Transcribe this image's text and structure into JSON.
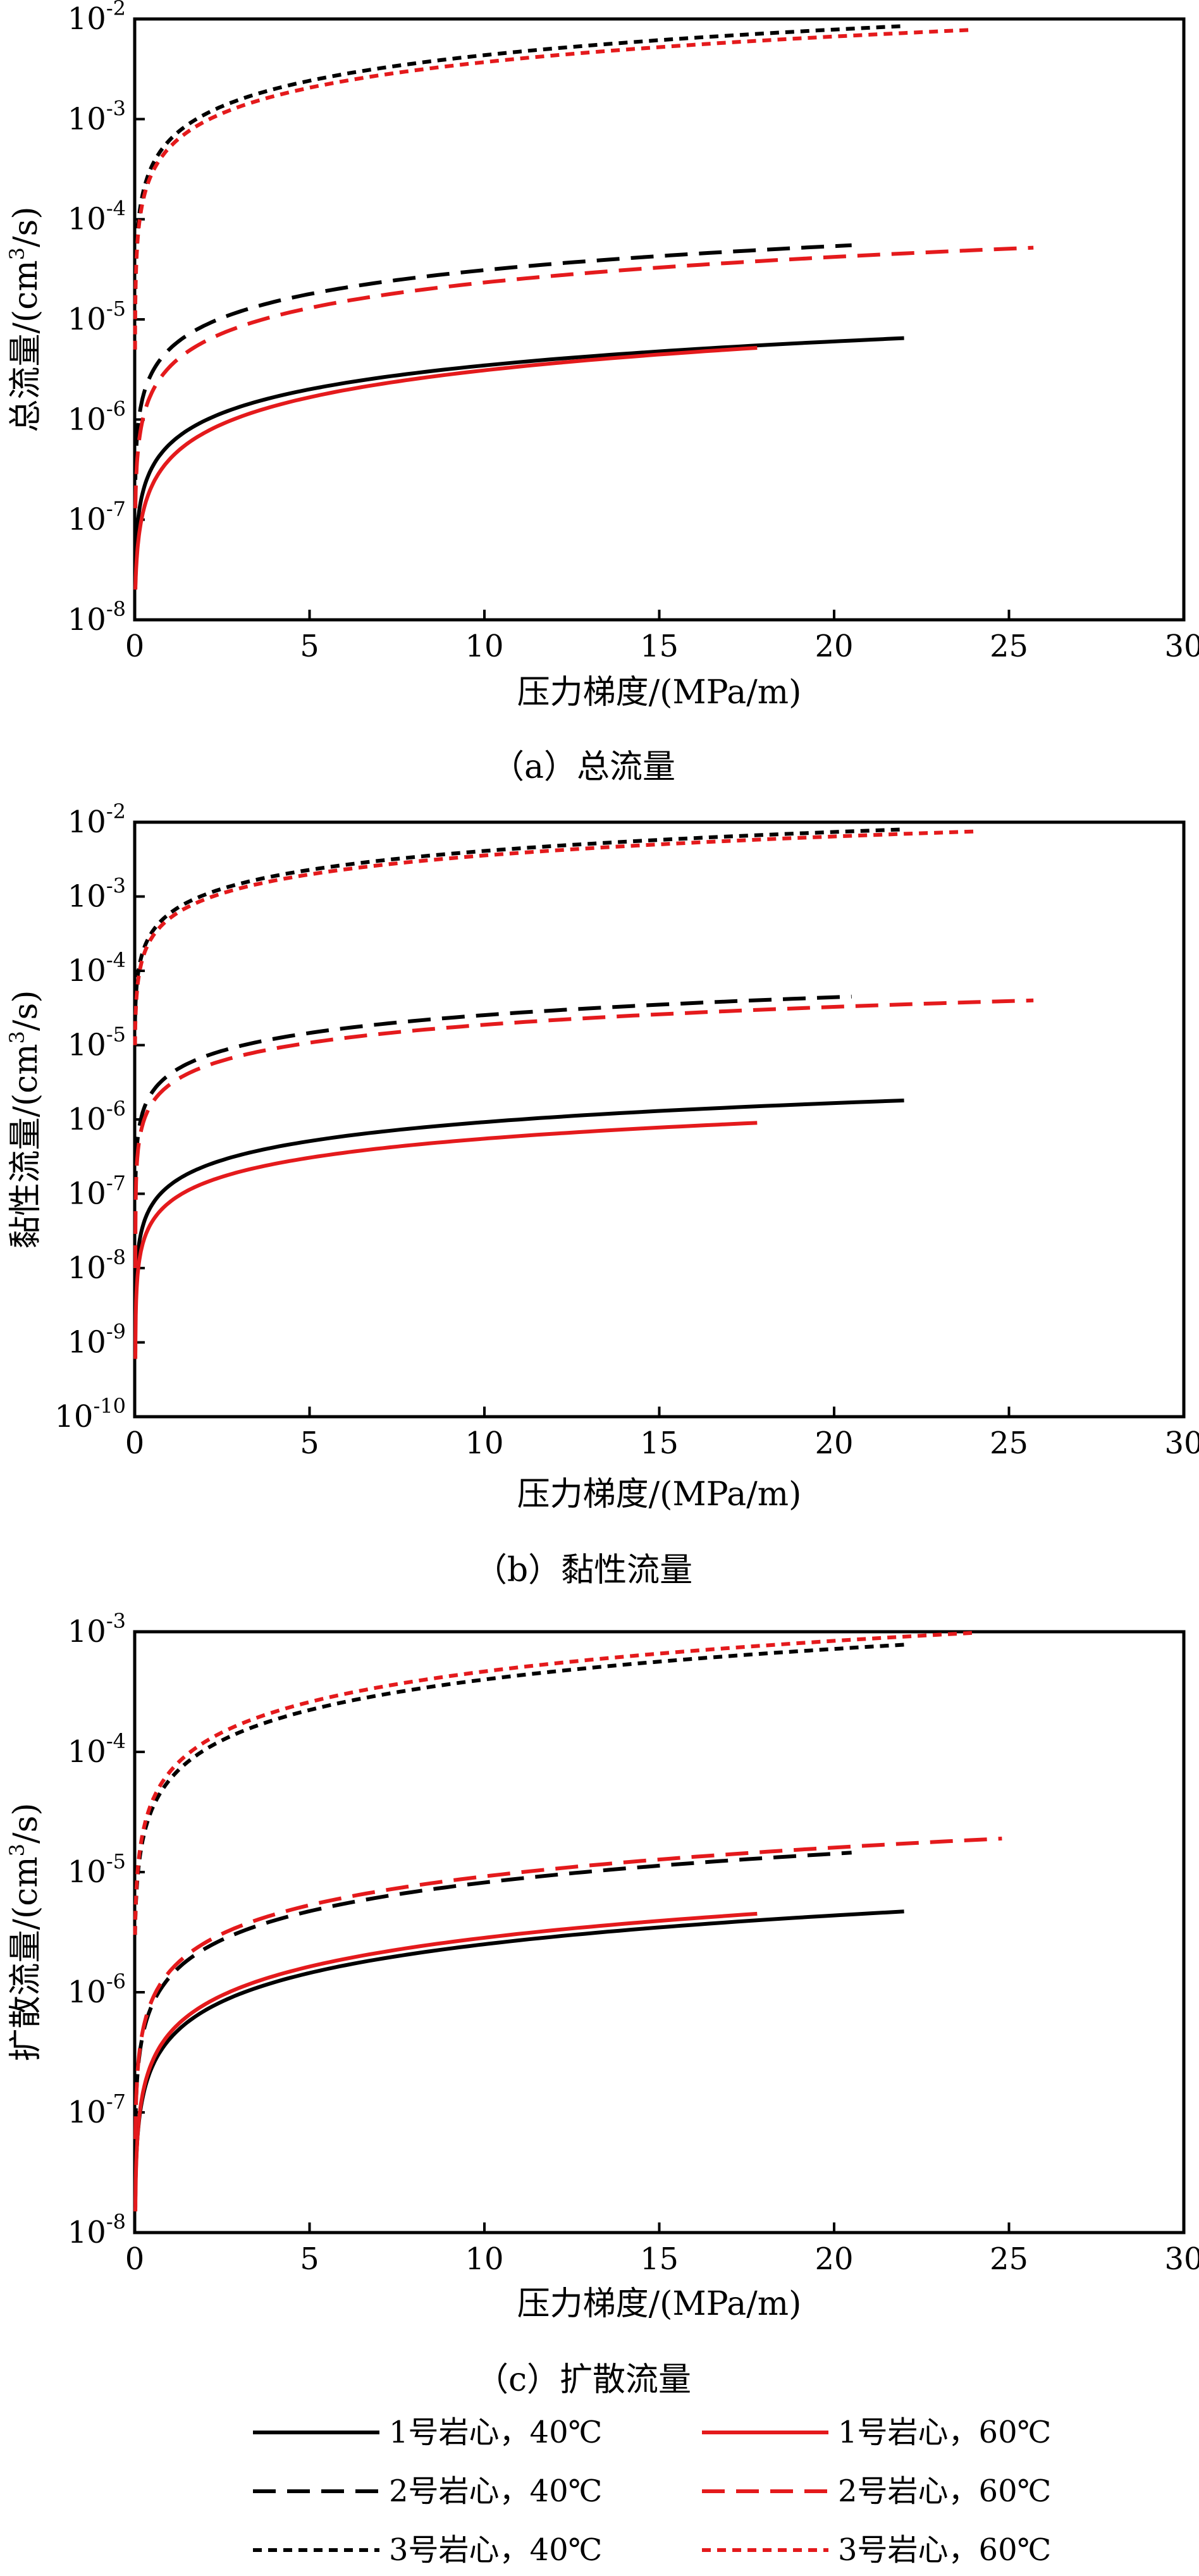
{
  "chart_data": [
    {
      "type": "line",
      "panel_id": "a",
      "caption": "（a）总流量",
      "xlabel": "压力梯度/(MPa/m)",
      "ylabel": "总流量/(cm³/s)",
      "ylabel_parts": {
        "pre": "总流量/(cm",
        "sup": "3",
        "post": "/s)"
      },
      "xlim": [
        0,
        30
      ],
      "ylim": [
        1e-08,
        0.01
      ],
      "yscale": "log",
      "xticks": [
        0,
        5,
        10,
        15,
        20,
        25,
        30
      ],
      "yticks": [
        {
          "base": "10",
          "exp": "-8",
          "value": 1e-08
        },
        {
          "base": "10",
          "exp": "-7",
          "value": 1e-07
        },
        {
          "base": "10",
          "exp": "-6",
          "value": 1e-06
        },
        {
          "base": "10",
          "exp": "-5",
          "value": 1e-05
        },
        {
          "base": "10",
          "exp": "-4",
          "value": 0.0001
        },
        {
          "base": "10",
          "exp": "-3",
          "value": 0.001
        },
        {
          "base": "10",
          "exp": "-2",
          "value": 0.01
        }
      ],
      "grid": false,
      "series": [
        {
          "name": "1号岩心，40℃",
          "color": "#000000",
          "dash": "solid",
          "x0": 0.02,
          "y0": 3e-08,
          "x1": 22.0,
          "y1": 6.5e-06,
          "exponent": 0.8
        },
        {
          "name": "1号岩心，60℃",
          "color": "#e41a1c",
          "dash": "solid",
          "x0": 0.02,
          "y0": 2e-08,
          "x1": 17.8,
          "y1": 5.2e-06,
          "exponent": 0.9
        },
        {
          "name": "2号岩心，40℃",
          "color": "#000000",
          "dash": "dashed",
          "x0": 0.02,
          "y0": 2.5e-07,
          "x1": 20.5,
          "y1": 5.5e-05,
          "exponent": 0.8
        },
        {
          "name": "2号岩心，60℃",
          "color": "#e41a1c",
          "dash": "dashed",
          "x0": 0.02,
          "y0": 1.3e-07,
          "x1": 25.7,
          "y1": 5.2e-05,
          "exponent": 0.85
        },
        {
          "name": "3号岩心，40℃",
          "color": "#000000",
          "dash": "dotted",
          "x0": 0.01,
          "y0": 1e-05,
          "x1": 22.0,
          "y1": 0.0085,
          "exponent": 0.85
        },
        {
          "name": "3号岩心，60℃",
          "color": "#e41a1c",
          "dash": "dotted",
          "x0": 0.01,
          "y0": 5e-06,
          "x1": 24.0,
          "y1": 0.0078,
          "exponent": 0.85
        }
      ]
    },
    {
      "type": "line",
      "panel_id": "b",
      "caption": "（b）黏性流量",
      "xlabel": "压力梯度/(MPa/m)",
      "ylabel": "黏性流量/(cm³/s)",
      "ylabel_parts": {
        "pre": "黏性流量/(cm",
        "sup": "3",
        "post": "/s)"
      },
      "xlim": [
        0,
        30
      ],
      "ylim": [
        1e-10,
        0.01
      ],
      "yscale": "log",
      "xticks": [
        0,
        5,
        10,
        15,
        20,
        25,
        30
      ],
      "yticks": [
        {
          "base": "10",
          "exp": "-10",
          "value": 1e-10
        },
        {
          "base": "10",
          "exp": "-9",
          "value": 1e-09
        },
        {
          "base": "10",
          "exp": "-8",
          "value": 1e-08
        },
        {
          "base": "10",
          "exp": "-7",
          "value": 1e-07
        },
        {
          "base": "10",
          "exp": "-6",
          "value": 1e-06
        },
        {
          "base": "10",
          "exp": "-5",
          "value": 1e-05
        },
        {
          "base": "10",
          "exp": "-4",
          "value": 0.0001
        },
        {
          "base": "10",
          "exp": "-3",
          "value": 0.001
        },
        {
          "base": "10",
          "exp": "-2",
          "value": 0.01
        }
      ],
      "grid": false,
      "series": [
        {
          "name": "1号岩心，40℃",
          "color": "#000000",
          "dash": "solid",
          "x0": 0.02,
          "y0": 2e-09,
          "x1": 22.0,
          "y1": 1.8e-06,
          "exponent": 0.85
        },
        {
          "name": "1号岩心，60℃",
          "color": "#e41a1c",
          "dash": "solid",
          "x0": 0.02,
          "y0": 6e-10,
          "x1": 17.8,
          "y1": 9e-07,
          "exponent": 0.85
        },
        {
          "name": "2号岩心，40℃",
          "color": "#000000",
          "dash": "dashed",
          "x0": 0.02,
          "y0": 1e-07,
          "x1": 20.5,
          "y1": 4.5e-05,
          "exponent": 0.8
        },
        {
          "name": "2号岩心，60℃",
          "color": "#e41a1c",
          "dash": "dashed",
          "x0": 0.02,
          "y0": 1e-08,
          "x1": 25.7,
          "y1": 4e-05,
          "exponent": 0.8
        },
        {
          "name": "3号岩心，40℃",
          "color": "#000000",
          "dash": "dotted",
          "x0": 0.01,
          "y0": 2e-05,
          "x1": 22.0,
          "y1": 0.008,
          "exponent": 0.85
        },
        {
          "name": "3号岩心，60℃",
          "color": "#e41a1c",
          "dash": "dotted",
          "x0": 0.01,
          "y0": 1e-05,
          "x1": 24.0,
          "y1": 0.0075,
          "exponent": 0.85
        }
      ]
    },
    {
      "type": "line",
      "panel_id": "c",
      "caption": "（c）扩散流量",
      "xlabel": "压力梯度/(MPa/m)",
      "ylabel": "扩散流量/(cm³/s)",
      "ylabel_parts": {
        "pre": "扩散流量/(cm",
        "sup": "3",
        "post": "/s)"
      },
      "xlim": [
        0,
        30
      ],
      "ylim": [
        1e-08,
        0.001
      ],
      "yscale": "log",
      "xticks": [
        0,
        5,
        10,
        15,
        20,
        25,
        30
      ],
      "yticks": [
        {
          "base": "10",
          "exp": "-8",
          "value": 1e-08
        },
        {
          "base": "10",
          "exp": "-7",
          "value": 1e-07
        },
        {
          "base": "10",
          "exp": "-6",
          "value": 1e-06
        },
        {
          "base": "10",
          "exp": "-5",
          "value": 1e-05
        },
        {
          "base": "10",
          "exp": "-4",
          "value": 0.0001
        },
        {
          "base": "10",
          "exp": "-3",
          "value": 0.001
        }
      ],
      "grid": false,
      "series": [
        {
          "name": "1号岩心，40℃",
          "color": "#000000",
          "dash": "solid",
          "x0": 0.02,
          "y0": 2e-08,
          "x1": 22.0,
          "y1": 4.7e-06,
          "exponent": 0.8
        },
        {
          "name": "1号岩心，60℃",
          "color": "#e41a1c",
          "dash": "solid",
          "x0": 0.02,
          "y0": 1.5e-08,
          "x1": 17.8,
          "y1": 4.5e-06,
          "exponent": 0.8
        },
        {
          "name": "2号岩心，40℃",
          "color": "#000000",
          "dash": "dashed",
          "x0": 0.02,
          "y0": 7e-08,
          "x1": 20.5,
          "y1": 1.45e-05,
          "exponent": 0.8
        },
        {
          "name": "2号岩心，60℃",
          "color": "#e41a1c",
          "dash": "dashed",
          "x0": 0.02,
          "y0": 6e-08,
          "x1": 24.8,
          "y1": 1.9e-05,
          "exponent": 0.8
        },
        {
          "name": "3号岩心，40℃",
          "color": "#000000",
          "dash": "dotted",
          "x0": 0.01,
          "y0": 3e-06,
          "x1": 22.0,
          "y1": 0.00078,
          "exponent": 0.85
        },
        {
          "name": "3号岩心，60℃",
          "color": "#e41a1c",
          "dash": "dotted",
          "x0": 0.01,
          "y0": 3e-06,
          "x1": 24.0,
          "y1": 0.00098,
          "exponent": 0.85
        }
      ]
    }
  ],
  "legend": {
    "placement": "bottom",
    "items": [
      {
        "label": "1号岩心，40℃",
        "color": "#000000",
        "dash": "solid"
      },
      {
        "label": "1号岩心，60℃",
        "color": "#e41a1c",
        "dash": "solid"
      },
      {
        "label": "2号岩心，40℃",
        "color": "#000000",
        "dash": "dashed"
      },
      {
        "label": "2号岩心，60℃",
        "color": "#e41a1c",
        "dash": "dashed"
      },
      {
        "label": "3号岩心，40℃",
        "color": "#000000",
        "dash": "dotted"
      },
      {
        "label": "3号岩心，60℃",
        "color": "#e41a1c",
        "dash": "dotted"
      }
    ]
  }
}
